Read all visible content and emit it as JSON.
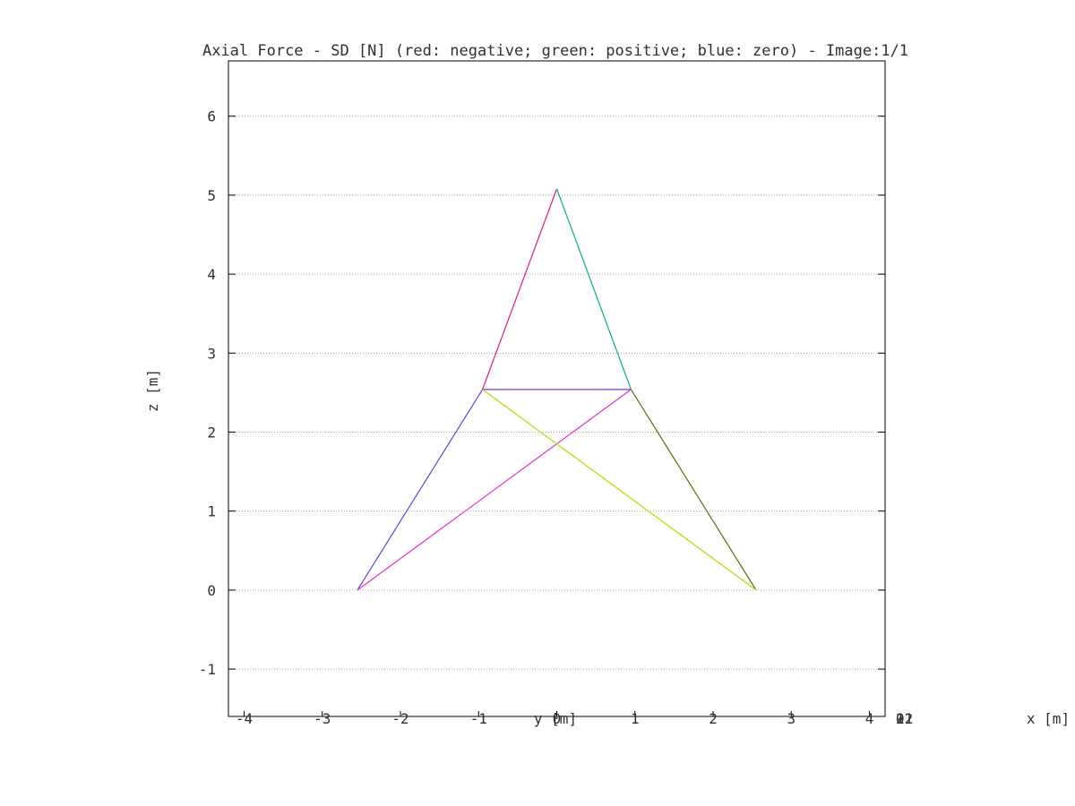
{
  "chart_data": {
    "type": "line",
    "title": "Axial Force - SD [N] (red: negative; green: positive; blue: zero) - Image:1/1",
    "xlabel": "x [m]",
    "ylabel": "z [m]",
    "depth_label": "y [m]",
    "xlim": [
      -4.2,
      4.2
    ],
    "ylim": [
      -1.6,
      6.7
    ],
    "x_ticks": [
      "-4",
      "-3",
      "-2",
      "-1",
      "0",
      "1",
      "2",
      "3",
      "4"
    ],
    "y_ticks": [
      "-1",
      "0",
      "1",
      "2",
      "3",
      "4",
      "5",
      "6"
    ],
    "y_tick_values": [
      -1,
      0,
      1,
      2,
      3,
      4,
      5,
      6
    ],
    "x_tick_values": [
      -4,
      -3,
      -2,
      -1,
      0,
      1,
      2,
      3,
      4
    ],
    "side_ticks": [
      "-2",
      "-1",
      "0",
      "1",
      "2"
    ],
    "grid": "horizontal dotted",
    "members": [
      {
        "x": [
          -2.55,
          -0.95
        ],
        "z": [
          0,
          2.54
        ],
        "color": "#6a3fd0"
      },
      {
        "x": [
          -0.95,
          0.0
        ],
        "z": [
          2.54,
          5.08
        ],
        "color": "#d0208a"
      },
      {
        "x": [
          0.0,
          0.95
        ],
        "z": [
          5.08,
          2.54
        ],
        "color": "#10a888"
      },
      {
        "x": [
          0.95,
          2.55
        ],
        "z": [
          2.54,
          0
        ],
        "color": "#5a6a10"
      },
      {
        "x": [
          -0.95,
          0.95
        ],
        "z": [
          2.54,
          2.54
        ],
        "color": "#7a3cc8"
      },
      {
        "x": [
          -2.55,
          0.95
        ],
        "z": [
          0,
          2.54
        ],
        "color": "#e030d8"
      },
      {
        "x": [
          -0.95,
          2.55
        ],
        "z": [
          2.54,
          0
        ],
        "color": "#a8e000"
      }
    ]
  }
}
